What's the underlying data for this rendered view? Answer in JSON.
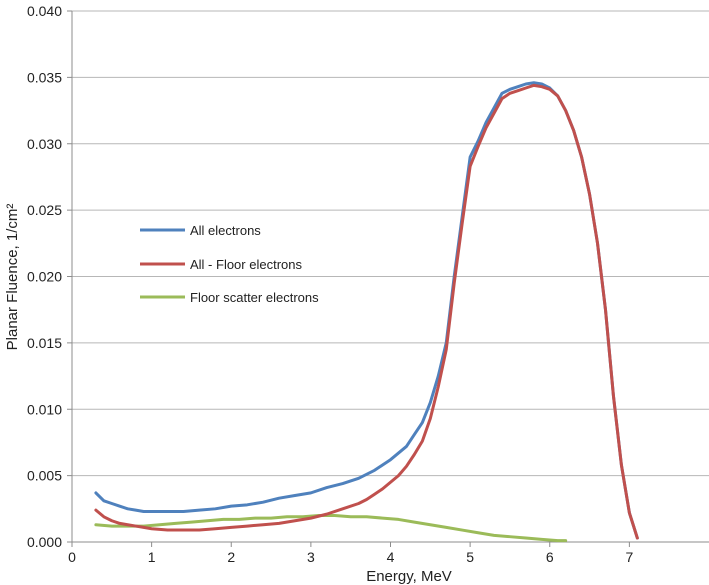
{
  "chart_data": {
    "type": "line",
    "title": "",
    "xlabel": "Energy, MeV",
    "ylabel": "Planar  Fluence, 1/cm²",
    "xlim": [
      0,
      8
    ],
    "ylim": [
      0,
      0.04
    ],
    "x_ticks": [
      "0",
      "1",
      "2",
      "3",
      "4",
      "5",
      "6",
      "7"
    ],
    "y_ticks": [
      "0.000",
      "0.005",
      "0.010",
      "0.015",
      "0.020",
      "0.025",
      "0.030",
      "0.035",
      "0.040"
    ],
    "grid": "horizontal",
    "legend_position": "left-middle",
    "series": [
      {
        "name": "All electrons",
        "color": "#4f81bd",
        "points": [
          [
            0.3,
            0.0037
          ],
          [
            0.4,
            0.0031
          ],
          [
            0.5,
            0.0029
          ],
          [
            0.6,
            0.0027
          ],
          [
            0.7,
            0.0025
          ],
          [
            0.8,
            0.0024
          ],
          [
            0.9,
            0.0023
          ],
          [
            1.0,
            0.0023
          ],
          [
            1.2,
            0.0023
          ],
          [
            1.4,
            0.0023
          ],
          [
            1.6,
            0.0024
          ],
          [
            1.8,
            0.0025
          ],
          [
            2.0,
            0.0027
          ],
          [
            2.2,
            0.0028
          ],
          [
            2.4,
            0.003
          ],
          [
            2.6,
            0.0033
          ],
          [
            2.8,
            0.0035
          ],
          [
            3.0,
            0.0037
          ],
          [
            3.2,
            0.0041
          ],
          [
            3.4,
            0.0044
          ],
          [
            3.6,
            0.0048
          ],
          [
            3.7,
            0.0051
          ],
          [
            3.8,
            0.0054
          ],
          [
            3.9,
            0.0058
          ],
          [
            4.0,
            0.0062
          ],
          [
            4.1,
            0.0067
          ],
          [
            4.2,
            0.0072
          ],
          [
            4.3,
            0.0081
          ],
          [
            4.4,
            0.009
          ],
          [
            4.5,
            0.0105
          ],
          [
            4.6,
            0.0125
          ],
          [
            4.7,
            0.015
          ],
          [
            4.8,
            0.02
          ],
          [
            4.9,
            0.0245
          ],
          [
            5.0,
            0.029
          ],
          [
            5.1,
            0.0302
          ],
          [
            5.2,
            0.0316
          ],
          [
            5.3,
            0.0327
          ],
          [
            5.4,
            0.0338
          ],
          [
            5.5,
            0.0341
          ],
          [
            5.6,
            0.0343
          ],
          [
            5.7,
            0.0345
          ],
          [
            5.8,
            0.0346
          ],
          [
            5.9,
            0.0345
          ],
          [
            6.0,
            0.0342
          ],
          [
            6.1,
            0.0336
          ],
          [
            6.2,
            0.0325
          ],
          [
            6.3,
            0.031
          ],
          [
            6.4,
            0.029
          ],
          [
            6.5,
            0.0262
          ],
          [
            6.6,
            0.0225
          ],
          [
            6.7,
            0.0175
          ],
          [
            6.8,
            0.011
          ],
          [
            6.9,
            0.0058
          ],
          [
            7.0,
            0.0022
          ],
          [
            7.1,
            0.0003
          ]
        ]
      },
      {
        "name": "All - Floor electrons",
        "color": "#c0504d",
        "points": [
          [
            0.3,
            0.0024
          ],
          [
            0.4,
            0.0019
          ],
          [
            0.5,
            0.0016
          ],
          [
            0.6,
            0.0014
          ],
          [
            0.7,
            0.0013
          ],
          [
            0.8,
            0.0012
          ],
          [
            0.9,
            0.0011
          ],
          [
            1.0,
            0.001
          ],
          [
            1.2,
            0.0009
          ],
          [
            1.4,
            0.0009
          ],
          [
            1.6,
            0.0009
          ],
          [
            1.8,
            0.001
          ],
          [
            2.0,
            0.0011
          ],
          [
            2.2,
            0.0012
          ],
          [
            2.4,
            0.0013
          ],
          [
            2.6,
            0.0014
          ],
          [
            2.8,
            0.0016
          ],
          [
            3.0,
            0.0018
          ],
          [
            3.2,
            0.0021
          ],
          [
            3.4,
            0.0025
          ],
          [
            3.6,
            0.0029
          ],
          [
            3.7,
            0.0032
          ],
          [
            3.8,
            0.0036
          ],
          [
            3.9,
            0.004
          ],
          [
            4.0,
            0.0045
          ],
          [
            4.1,
            0.005
          ],
          [
            4.2,
            0.0057
          ],
          [
            4.3,
            0.0066
          ],
          [
            4.4,
            0.0076
          ],
          [
            4.5,
            0.0093
          ],
          [
            4.6,
            0.0117
          ],
          [
            4.7,
            0.0145
          ],
          [
            4.8,
            0.0195
          ],
          [
            4.9,
            0.024
          ],
          [
            5.0,
            0.0283
          ],
          [
            5.1,
            0.0298
          ],
          [
            5.2,
            0.0312
          ],
          [
            5.3,
            0.0323
          ],
          [
            5.4,
            0.0334
          ],
          [
            5.5,
            0.0338
          ],
          [
            5.6,
            0.034
          ],
          [
            5.7,
            0.0342
          ],
          [
            5.8,
            0.0344
          ],
          [
            5.9,
            0.0343
          ],
          [
            6.0,
            0.0341
          ],
          [
            6.1,
            0.0336
          ],
          [
            6.2,
            0.0325
          ],
          [
            6.3,
            0.031
          ],
          [
            6.4,
            0.029
          ],
          [
            6.5,
            0.0262
          ],
          [
            6.6,
            0.0225
          ],
          [
            6.7,
            0.0175
          ],
          [
            6.8,
            0.011
          ],
          [
            6.9,
            0.0058
          ],
          [
            7.0,
            0.0022
          ],
          [
            7.1,
            0.0003
          ]
        ]
      },
      {
        "name": "Floor scatter electrons",
        "color": "#9bbb59",
        "points": [
          [
            0.3,
            0.0013
          ],
          [
            0.5,
            0.0012
          ],
          [
            0.7,
            0.0012
          ],
          [
            0.9,
            0.0012
          ],
          [
            1.1,
            0.0013
          ],
          [
            1.3,
            0.0014
          ],
          [
            1.5,
            0.0015
          ],
          [
            1.7,
            0.0016
          ],
          [
            1.9,
            0.0017
          ],
          [
            2.1,
            0.0017
          ],
          [
            2.3,
            0.0018
          ],
          [
            2.5,
            0.0018
          ],
          [
            2.7,
            0.0019
          ],
          [
            2.9,
            0.0019
          ],
          [
            3.1,
            0.002
          ],
          [
            3.3,
            0.002
          ],
          [
            3.5,
            0.0019
          ],
          [
            3.7,
            0.0019
          ],
          [
            3.9,
            0.0018
          ],
          [
            4.1,
            0.0017
          ],
          [
            4.3,
            0.0015
          ],
          [
            4.5,
            0.0013
          ],
          [
            4.7,
            0.0011
          ],
          [
            4.9,
            0.0009
          ],
          [
            5.1,
            0.0007
          ],
          [
            5.3,
            0.0005
          ],
          [
            5.5,
            0.0004
          ],
          [
            5.7,
            0.0003
          ],
          [
            5.9,
            0.0002
          ],
          [
            6.1,
            0.0001
          ],
          [
            6.2,
            0.0001
          ]
        ]
      }
    ]
  }
}
